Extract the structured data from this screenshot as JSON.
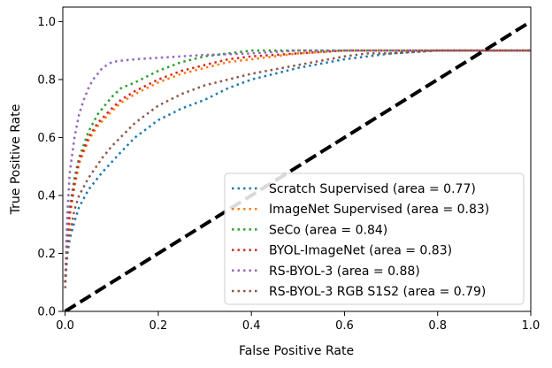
{
  "chart_data": {
    "type": "line",
    "title": "",
    "xlabel": "False Positive Rate",
    "ylabel": "True Positive Rate",
    "xlim": [
      -0.005,
      1.0
    ],
    "ylim": [
      0.0,
      1.05
    ],
    "xticks": [
      "0.0",
      "0.2",
      "0.4",
      "0.6",
      "0.8",
      "1.0"
    ],
    "yticks": [
      "0.0",
      "0.2",
      "0.4",
      "0.6",
      "0.8",
      "1.0"
    ],
    "grid": false,
    "legend_position": "lower-right",
    "series": [
      {
        "name": "Scratch Supervised (area = 0.77)",
        "color": "#1f77b4",
        "style": "dotted",
        "x": [
          0.0,
          0.005,
          0.01,
          0.02,
          0.03,
          0.05,
          0.08,
          0.12,
          0.15,
          0.2,
          0.25,
          0.3,
          0.35,
          0.4,
          0.45,
          0.5,
          0.6,
          0.7,
          0.8,
          0.9,
          1.0
        ],
        "y": [
          0.1,
          0.2,
          0.25,
          0.31,
          0.36,
          0.42,
          0.48,
          0.55,
          0.6,
          0.66,
          0.7,
          0.73,
          0.77,
          0.8,
          0.82,
          0.84,
          0.87,
          0.89,
          0.9,
          0.9,
          0.9
        ]
      },
      {
        "name": "ImageNet Supervised (area = 0.83)",
        "color": "#ff7f0e",
        "style": "dotted",
        "x": [
          0.0,
          0.005,
          0.01,
          0.02,
          0.03,
          0.05,
          0.07,
          0.1,
          0.12,
          0.15,
          0.2,
          0.25,
          0.3,
          0.35,
          0.4,
          0.5,
          0.6,
          0.7,
          0.8,
          1.0
        ],
        "y": [
          0.1,
          0.25,
          0.33,
          0.43,
          0.51,
          0.59,
          0.64,
          0.69,
          0.72,
          0.75,
          0.79,
          0.82,
          0.84,
          0.86,
          0.87,
          0.89,
          0.9,
          0.9,
          0.9,
          0.9
        ]
      },
      {
        "name": "SeCo (area = 0.84)",
        "color": "#2ca02c",
        "style": "dotted",
        "x": [
          0.0,
          0.005,
          0.01,
          0.02,
          0.03,
          0.05,
          0.07,
          0.1,
          0.12,
          0.15,
          0.2,
          0.25,
          0.3,
          0.35,
          0.4,
          0.5,
          0.6,
          0.7,
          0.8,
          1.0
        ],
        "y": [
          0.1,
          0.28,
          0.36,
          0.46,
          0.53,
          0.62,
          0.68,
          0.74,
          0.77,
          0.79,
          0.83,
          0.86,
          0.88,
          0.89,
          0.9,
          0.9,
          0.9,
          0.9,
          0.9,
          0.9
        ]
      },
      {
        "name": "BYOL-ImageNet (area = 0.83)",
        "color": "#d62728",
        "style": "dotted",
        "x": [
          0.0,
          0.005,
          0.01,
          0.02,
          0.03,
          0.05,
          0.07,
          0.1,
          0.12,
          0.15,
          0.2,
          0.25,
          0.3,
          0.35,
          0.4,
          0.5,
          0.6,
          0.7,
          0.8,
          1.0
        ],
        "y": [
          0.1,
          0.26,
          0.34,
          0.44,
          0.52,
          0.6,
          0.65,
          0.7,
          0.73,
          0.76,
          0.8,
          0.83,
          0.85,
          0.87,
          0.88,
          0.89,
          0.9,
          0.9,
          0.9,
          0.9
        ]
      },
      {
        "name": "RS-BYOL-3 (area = 0.88)",
        "color": "#9467bd",
        "style": "dotted",
        "x": [
          0.0,
          0.005,
          0.01,
          0.02,
          0.03,
          0.04,
          0.05,
          0.06,
          0.07,
          0.08,
          0.09,
          0.1,
          0.12,
          0.15,
          0.2,
          0.25,
          0.3,
          0.4,
          0.5,
          0.6,
          0.8,
          1.0
        ],
        "y": [
          0.1,
          0.35,
          0.48,
          0.6,
          0.68,
          0.73,
          0.77,
          0.8,
          0.82,
          0.84,
          0.85,
          0.86,
          0.865,
          0.87,
          0.875,
          0.88,
          0.885,
          0.89,
          0.9,
          0.9,
          0.9,
          0.9
        ]
      },
      {
        "name": "RS-BYOL-3 RGB S1S2 (area = 0.79)",
        "color": "#8c564b",
        "style": "dotted",
        "x": [
          0.0,
          0.005,
          0.01,
          0.02,
          0.03,
          0.05,
          0.08,
          0.1,
          0.15,
          0.2,
          0.25,
          0.3,
          0.35,
          0.4,
          0.5,
          0.6,
          0.65,
          0.7,
          0.8,
          1.0
        ],
        "y": [
          0.08,
          0.22,
          0.27,
          0.35,
          0.4,
          0.46,
          0.53,
          0.57,
          0.65,
          0.71,
          0.75,
          0.78,
          0.8,
          0.82,
          0.85,
          0.88,
          0.89,
          0.89,
          0.9,
          0.9
        ]
      }
    ],
    "reference_line": {
      "x": [
        0.0,
        1.0
      ],
      "y": [
        0.0,
        1.0
      ],
      "color": "#000000",
      "style": "dashed"
    }
  }
}
